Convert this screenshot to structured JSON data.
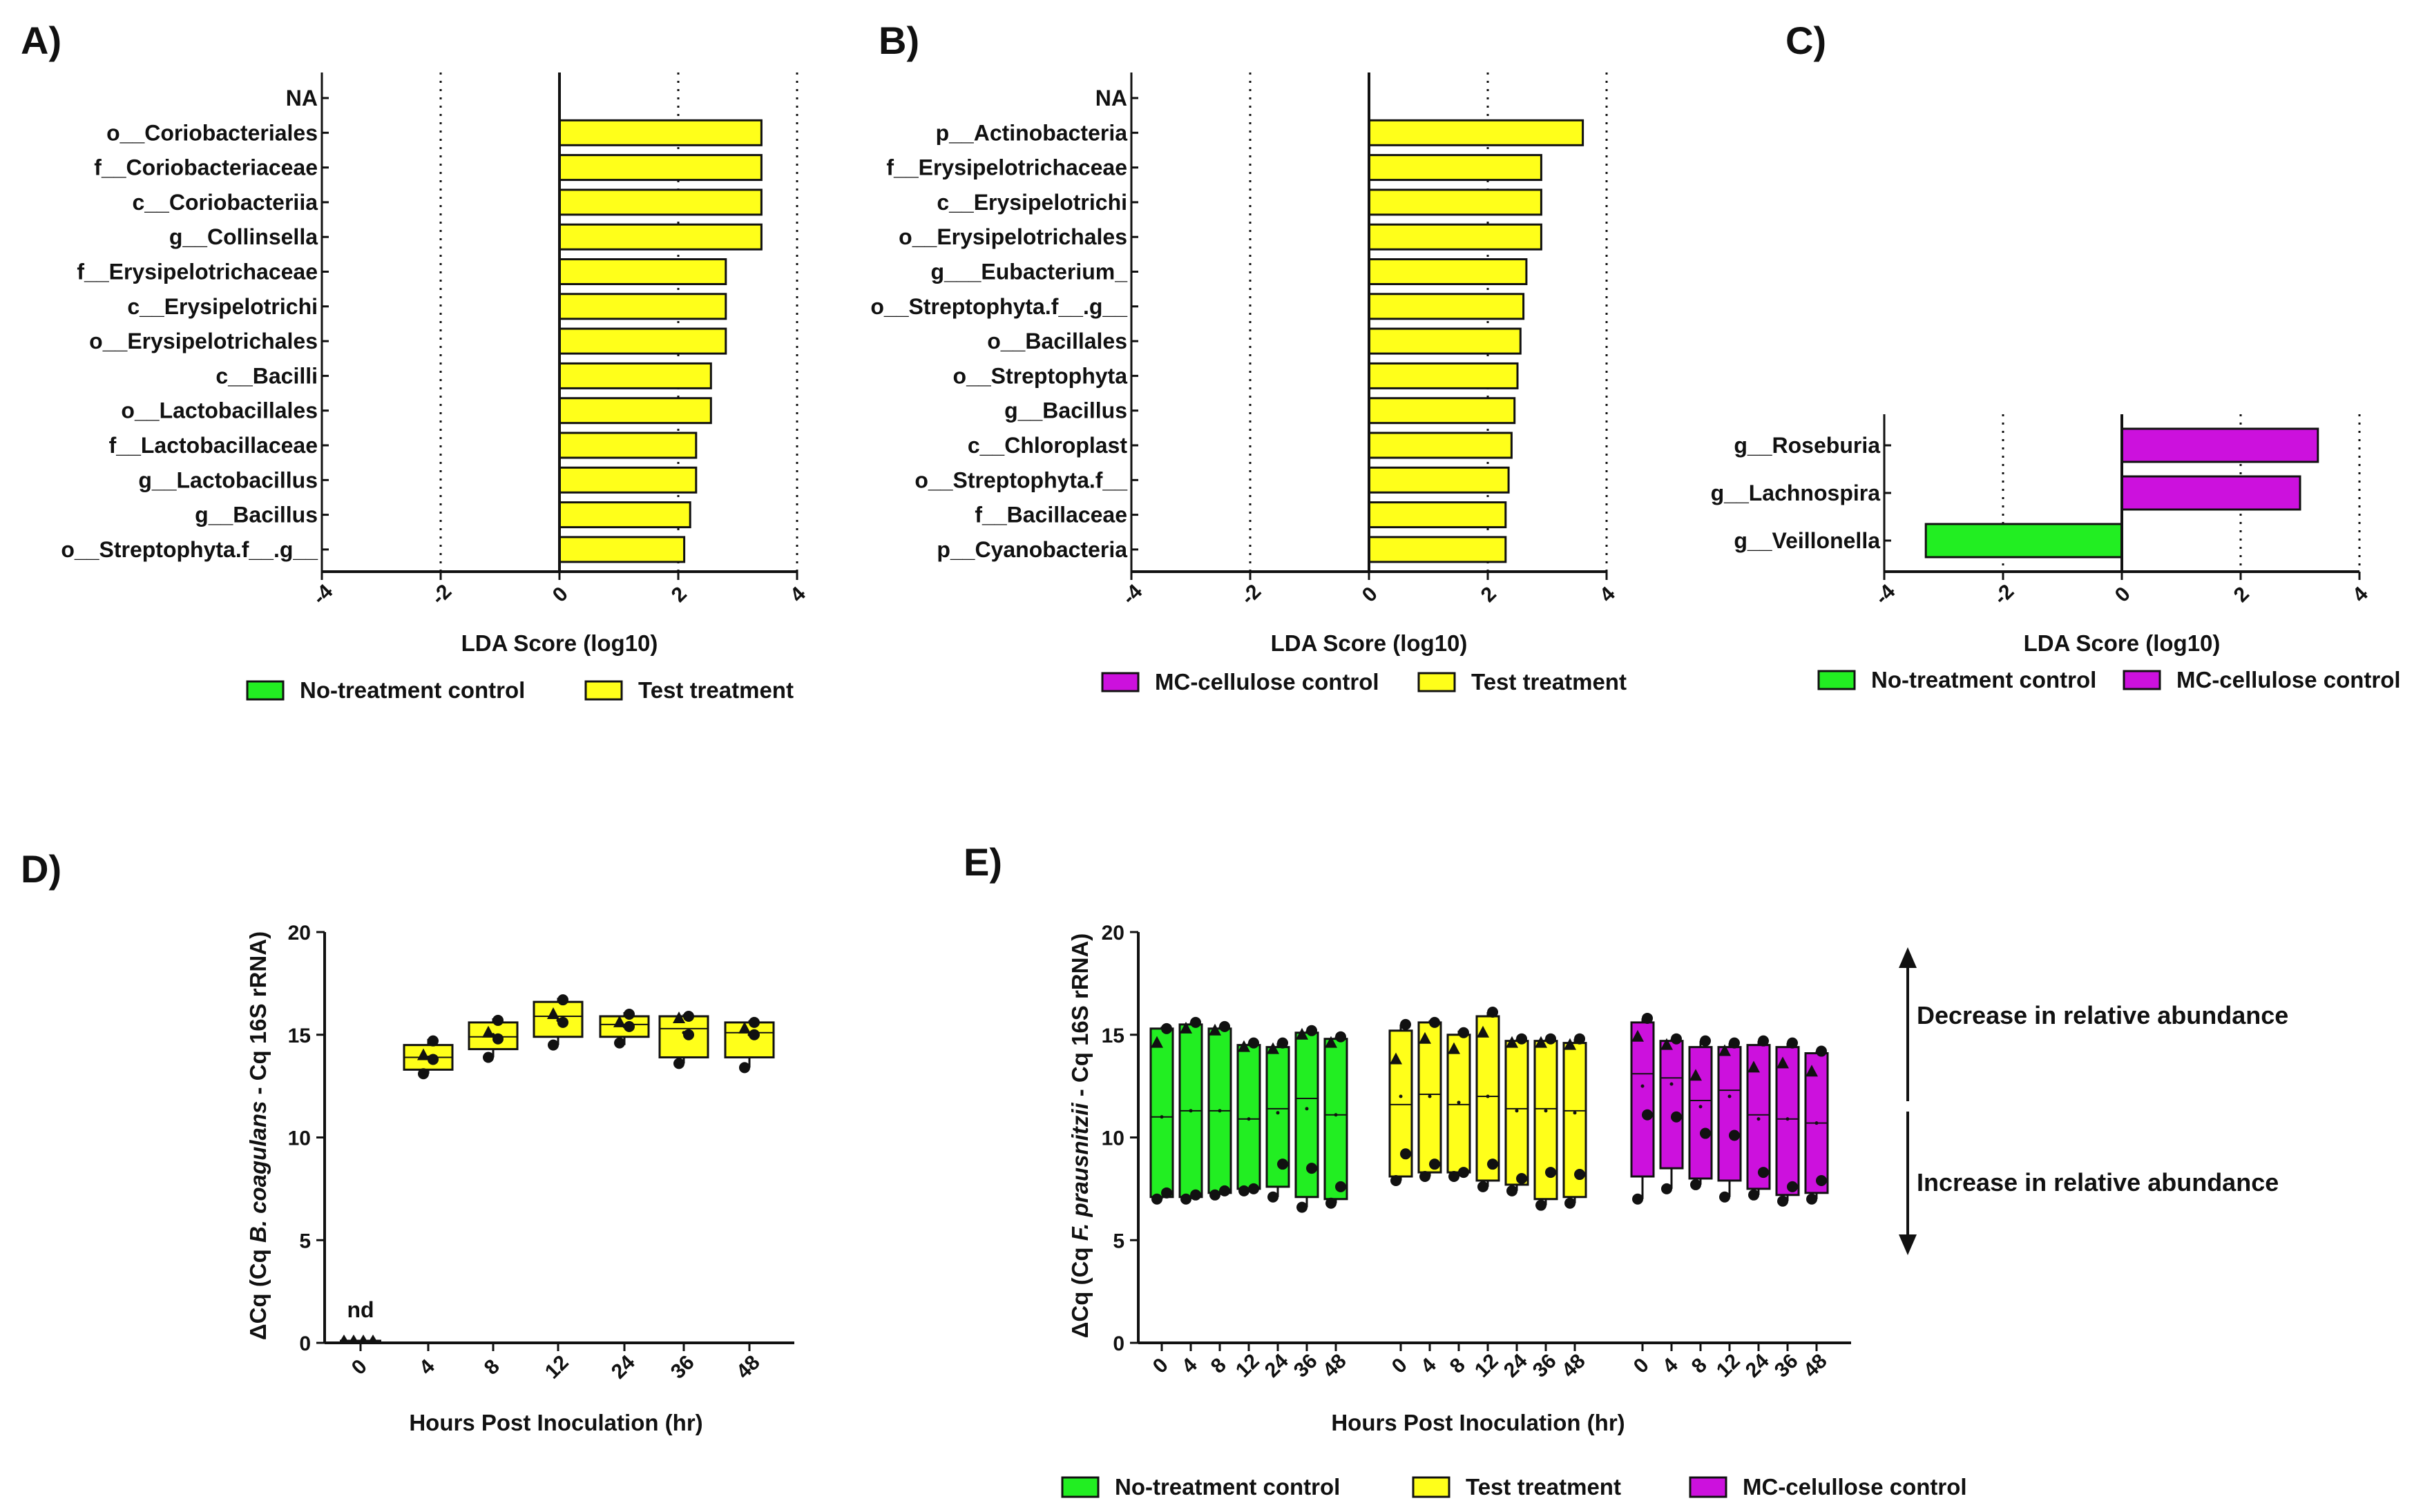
{
  "colors": {
    "no_treatment": "#22ee22",
    "test": "#ffff1a",
    "mc_cellulose": "#cc11dd",
    "stroke": "#111111"
  },
  "chart_data": [
    {
      "panel": "A)",
      "type": "bar",
      "orientation": "horizontal",
      "xlabel": "LDA Score (log10)",
      "xlim": [
        -4,
        4
      ],
      "xticks": [
        "-4",
        "-2",
        "0",
        "2",
        "4"
      ],
      "categories": [
        "NA",
        "o__Coriobacteriales",
        "f__Coriobacteriaceae",
        "c__Coriobacteriia",
        "g__Collinsella",
        "f__Erysipelotrichaceae",
        "c__Erysipelotrichi",
        "o__Erysipelotrichales",
        "c__Bacilli",
        "o__Lactobacillales",
        "f__Lactobacillaceae",
        "g__Lactobacillus",
        "g__Bacillus",
        "o__Streptophyta.f__.g__"
      ],
      "values": [
        null,
        3.4,
        3.4,
        3.4,
        3.4,
        2.8,
        2.8,
        2.8,
        2.55,
        2.55,
        2.3,
        2.3,
        2.2,
        2.1
      ],
      "groups": [
        "",
        "test",
        "test",
        "test",
        "test",
        "test",
        "test",
        "test",
        "test",
        "test",
        "test",
        "test",
        "test",
        "test"
      ],
      "legend": [
        {
          "label": "No-treatment control",
          "group": "no_treatment"
        },
        {
          "label": "Test treatment",
          "group": "test"
        }
      ]
    },
    {
      "panel": "B)",
      "type": "bar",
      "orientation": "horizontal",
      "xlabel": "LDA Score (log10)",
      "xlim": [
        -4,
        4
      ],
      "xticks": [
        "-4",
        "-2",
        "0",
        "2",
        "4"
      ],
      "categories": [
        "NA",
        "p__Actinobacteria",
        "f__Erysipelotrichaceae",
        "c__Erysipelotrichi",
        "o__Erysipelotrichales",
        "g___Eubacterium_",
        "o__Streptophyta.f__.g__",
        "o__Bacillales",
        "o__Streptophyta",
        "g__Bacillus",
        "c__Chloroplast",
        "o__Streptophyta.f__",
        "f__Bacillaceae",
        "p__Cyanobacteria"
      ],
      "values": [
        null,
        3.6,
        2.9,
        2.9,
        2.9,
        2.65,
        2.6,
        2.55,
        2.5,
        2.45,
        2.4,
        2.35,
        2.3,
        2.3
      ],
      "groups": [
        "",
        "test",
        "test",
        "test",
        "test",
        "test",
        "test",
        "test",
        "test",
        "test",
        "test",
        "test",
        "test",
        "test"
      ],
      "legend": [
        {
          "label": "MC-cellulose control",
          "group": "mc_cellulose"
        },
        {
          "label": "Test treatment",
          "group": "test"
        }
      ]
    },
    {
      "panel": "C)",
      "type": "bar",
      "orientation": "horizontal",
      "xlabel": "LDA Score (log10)",
      "xlim": [
        -4,
        4
      ],
      "xticks": [
        "-4",
        "-2",
        "0",
        "2",
        "4"
      ],
      "categories": [
        "g__Roseburia",
        "g__Lachnospira",
        "g__Veillonella"
      ],
      "values": [
        3.3,
        3.0,
        -3.3
      ],
      "groups": [
        "mc_cellulose",
        "mc_cellulose",
        "no_treatment"
      ],
      "legend": [
        {
          "label": "No-treatment control",
          "group": "no_treatment"
        },
        {
          "label": "MC-cellulose control",
          "group": "mc_cellulose"
        }
      ]
    },
    {
      "panel": "D)",
      "type": "box",
      "ylabel_pre": "ΔCq (Cq ",
      "ylabel_italic": "B. coagulans",
      "ylabel_post": " - Cq 16S rRNA)",
      "xlabel": "Hours Post Inoculation (hr)",
      "ylim": [
        0,
        20
      ],
      "yticks": [
        "0",
        "5",
        "10",
        "15",
        "20"
      ],
      "categories": [
        "0",
        "4",
        "8",
        "12",
        "24",
        "36",
        "48"
      ],
      "nd_label": "nd",
      "boxes": [
        null,
        {
          "min": 13.1,
          "q1": 13.3,
          "median": 13.9,
          "mean": 13.9,
          "q3": 14.5,
          "max": 14.8,
          "points": [
            13.1,
            13.8,
            14.0,
            14.7
          ]
        },
        {
          "min": 13.9,
          "q1": 14.3,
          "median": 14.9,
          "mean": 15.0,
          "q3": 15.6,
          "max": 15.8,
          "points": [
            13.9,
            14.8,
            15.1,
            15.7
          ]
        },
        {
          "min": 14.5,
          "q1": 14.9,
          "median": 15.9,
          "mean": 15.7,
          "q3": 16.6,
          "max": 16.8,
          "points": [
            14.5,
            15.6,
            16.0,
            16.7
          ]
        },
        {
          "min": 14.5,
          "q1": 14.9,
          "median": 15.5,
          "mean": 15.4,
          "q3": 15.9,
          "max": 16.1,
          "points": [
            14.6,
            15.4,
            15.6,
            16.0
          ]
        },
        {
          "min": 13.6,
          "q1": 13.9,
          "median": 15.3,
          "mean": 15.1,
          "q3": 15.9,
          "max": 16.0,
          "points": [
            13.6,
            15.0,
            15.8,
            15.9
          ]
        },
        {
          "min": 13.4,
          "q1": 13.9,
          "median": 15.1,
          "mean": 15.0,
          "q3": 15.6,
          "max": 15.7,
          "points": [
            13.4,
            15.0,
            15.3,
            15.6
          ]
        }
      ]
    },
    {
      "panel": "E)",
      "type": "box",
      "ylabel_pre": "ΔCq (Cq ",
      "ylabel_italic": "F. prausnitzii",
      "ylabel_post": " - Cq 16S rRNA)",
      "xlabel": "Hours Post Inoculation (hr)",
      "ylim": [
        0,
        20
      ],
      "yticks": [
        "0",
        "5",
        "10",
        "15",
        "20"
      ],
      "categories": [
        "0",
        "4",
        "8",
        "12",
        "24",
        "36",
        "48"
      ],
      "series": [
        {
          "name": "No-treatment control",
          "group": "no_treatment",
          "boxes": [
            {
              "min": 7.0,
              "q1": 7.1,
              "median": 11.0,
              "mean": 11.0,
              "q3": 15.3,
              "max": 15.4,
              "points": [
                7.0,
                7.3,
                14.6,
                15.3
              ]
            },
            {
              "min": 7.0,
              "q1": 7.1,
              "median": 11.3,
              "mean": 11.3,
              "q3": 15.5,
              "max": 15.6,
              "points": [
                7.0,
                7.2,
                15.3,
                15.6
              ]
            },
            {
              "min": 7.2,
              "q1": 7.3,
              "median": 11.3,
              "mean": 11.3,
              "q3": 15.3,
              "max": 15.4,
              "points": [
                7.2,
                7.4,
                15.2,
                15.4
              ]
            },
            {
              "min": 7.4,
              "q1": 7.5,
              "median": 10.9,
              "mean": 10.9,
              "q3": 14.5,
              "max": 14.6,
              "points": [
                7.4,
                7.5,
                14.4,
                14.6
              ]
            },
            {
              "min": 7.1,
              "q1": 7.6,
              "median": 11.4,
              "mean": 11.2,
              "q3": 14.4,
              "max": 14.6,
              "points": [
                7.1,
                8.7,
                14.3,
                14.6
              ]
            },
            {
              "min": 6.6,
              "q1": 7.1,
              "median": 11.9,
              "mean": 11.4,
              "q3": 15.1,
              "max": 15.2,
              "points": [
                6.6,
                8.5,
                15.0,
                15.2
              ]
            },
            {
              "min": 6.8,
              "q1": 7.0,
              "median": 11.1,
              "mean": 11.1,
              "q3": 14.8,
              "max": 14.9,
              "points": [
                6.8,
                7.6,
                14.6,
                14.9
              ]
            }
          ]
        },
        {
          "name": "Test treatment",
          "group": "test",
          "boxes": [
            {
              "min": 7.9,
              "q1": 8.1,
              "median": 11.6,
              "mean": 12.0,
              "q3": 15.2,
              "max": 15.5,
              "points": [
                7.9,
                9.2,
                13.8,
                15.5
              ]
            },
            {
              "min": 8.1,
              "q1": 8.3,
              "median": 12.1,
              "mean": 12.0,
              "q3": 15.6,
              "max": 15.7,
              "points": [
                8.1,
                8.7,
                14.8,
                15.6
              ]
            },
            {
              "min": 8.1,
              "q1": 8.3,
              "median": 11.6,
              "mean": 11.7,
              "q3": 15.0,
              "max": 15.2,
              "points": [
                8.1,
                8.3,
                14.3,
                15.1
              ]
            },
            {
              "min": 7.6,
              "q1": 7.9,
              "median": 12.0,
              "mean": 12.0,
              "q3": 15.9,
              "max": 16.1,
              "points": [
                7.6,
                8.7,
                15.1,
                16.1
              ]
            },
            {
              "min": 7.4,
              "q1": 7.7,
              "median": 11.4,
              "mean": 11.3,
              "q3": 14.7,
              "max": 14.8,
              "points": [
                7.4,
                8.0,
                14.6,
                14.8
              ]
            },
            {
              "min": 6.7,
              "q1": 7.0,
              "median": 11.4,
              "mean": 11.3,
              "q3": 14.7,
              "max": 14.8,
              "points": [
                6.7,
                8.3,
                14.6,
                14.8
              ]
            },
            {
              "min": 6.8,
              "q1": 7.1,
              "median": 11.3,
              "mean": 11.2,
              "q3": 14.6,
              "max": 14.8,
              "points": [
                6.8,
                8.2,
                14.5,
                14.8
              ]
            }
          ]
        },
        {
          "name": "MC-celullose control",
          "group": "mc_cellulose",
          "boxes": [
            {
              "min": 7.0,
              "q1": 8.1,
              "median": 13.1,
              "mean": 12.5,
              "q3": 15.6,
              "max": 15.8,
              "points": [
                7.0,
                11.1,
                14.9,
                15.8
              ]
            },
            {
              "min": 7.5,
              "q1": 8.5,
              "median": 12.9,
              "mean": 12.6,
              "q3": 14.7,
              "max": 14.8,
              "points": [
                7.5,
                11.0,
                14.5,
                14.8
              ]
            },
            {
              "min": 7.7,
              "q1": 8.0,
              "median": 11.8,
              "mean": 11.5,
              "q3": 14.4,
              "max": 14.7,
              "points": [
                7.7,
                10.2,
                13.0,
                14.7
              ]
            },
            {
              "min": 7.1,
              "q1": 7.9,
              "median": 12.3,
              "mean": 12.0,
              "q3": 14.4,
              "max": 14.6,
              "points": [
                7.1,
                10.1,
                14.2,
                14.6
              ]
            },
            {
              "min": 7.2,
              "q1": 7.5,
              "median": 11.1,
              "mean": 10.9,
              "q3": 14.5,
              "max": 14.7,
              "points": [
                7.2,
                8.3,
                13.4,
                14.7
              ]
            },
            {
              "min": 6.9,
              "q1": 7.2,
              "median": 10.9,
              "mean": 10.9,
              "q3": 14.4,
              "max": 14.6,
              "points": [
                6.9,
                7.6,
                13.6,
                14.6
              ]
            },
            {
              "min": 7.0,
              "q1": 7.3,
              "median": 10.7,
              "mean": 10.7,
              "q3": 14.1,
              "max": 14.2,
              "points": [
                7.0,
                7.9,
                13.2,
                14.2
              ]
            }
          ]
        }
      ],
      "annotations": {
        "decrease": "Decrease in relative abundance",
        "increase": "Increase in relative abundance"
      },
      "legend": [
        {
          "label": "No-treatment control",
          "group": "no_treatment"
        },
        {
          "label": "Test treatment",
          "group": "test"
        },
        {
          "label": "MC-celullose control",
          "group": "mc_cellulose"
        }
      ]
    }
  ]
}
